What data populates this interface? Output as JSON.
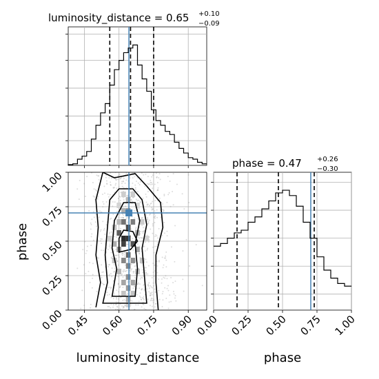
{
  "chart_data": [
    {
      "type": "histogram",
      "panel": "luminosity_distance marginal",
      "title": {
        "label": "luminosity_distance = 0.65",
        "plus": "+0.10",
        "minus": "−0.09"
      },
      "xlim": [
        0.38,
        0.98
      ],
      "bins": [
        0.38,
        0.4,
        0.42,
        0.44,
        0.46,
        0.48,
        0.5,
        0.52,
        0.54,
        0.56,
        0.58,
        0.6,
        0.62,
        0.64,
        0.66,
        0.68,
        0.7,
        0.72,
        0.74,
        0.76,
        0.78,
        0.8,
        0.82,
        0.84,
        0.86,
        0.88,
        0.9,
        0.92,
        0.94,
        0.96,
        0.98
      ],
      "counts": [
        1,
        2,
        8,
        12,
        18,
        34,
        52,
        68,
        80,
        104,
        124,
        136,
        146,
        152,
        156,
        130,
        112,
        96,
        72,
        58,
        52,
        44,
        40,
        30,
        22,
        16,
        10,
        8,
        4,
        2
      ],
      "quantiles": [
        0.56,
        0.65,
        0.75
      ],
      "truth": 0.643
    },
    {
      "type": "histogram",
      "panel": "phase marginal",
      "title": {
        "label": "phase = 0.47",
        "plus": "+0.26",
        "minus": "−0.30"
      },
      "xlim": [
        0,
        1
      ],
      "xticks": [
        "0.00",
        "0.25",
        "0.50",
        "0.75",
        "1.00"
      ],
      "bins": [
        0.0,
        0.05,
        0.1,
        0.15,
        0.2,
        0.25,
        0.3,
        0.35,
        0.4,
        0.45,
        0.5,
        0.55,
        0.6,
        0.65,
        0.7,
        0.75,
        0.8,
        0.85,
        0.9,
        0.95,
        1.0
      ],
      "counts": [
        48,
        50,
        54,
        58,
        60,
        66,
        70,
        76,
        82,
        88,
        90,
        86,
        78,
        66,
        54,
        40,
        30,
        24,
        20,
        18
      ],
      "quantiles": [
        0.17,
        0.47,
        0.73
      ],
      "truth": 0.705
    },
    {
      "type": "heatmap",
      "panel": "2D luminosity_distance vs phase",
      "xlabel": "luminosity_distance",
      "ylabel": "phase",
      "xlim": [
        0.38,
        0.98
      ],
      "ylim": [
        0,
        1
      ],
      "xticks": [
        "0.45",
        "0.60",
        "0.75",
        "0.90"
      ],
      "yticks": [
        "0.00",
        "0.25",
        "0.50",
        "0.75",
        "1.00"
      ],
      "truth": {
        "x": 0.643,
        "y": 0.705
      },
      "contours": [
        [
          [
            0.5,
            0.02
          ],
          [
            0.52,
            0.2
          ],
          [
            0.5,
            0.4
          ],
          [
            0.51,
            0.6
          ],
          [
            0.5,
            0.8
          ],
          [
            0.53,
            1.0
          ],
          [
            0.58,
            0.96
          ],
          [
            0.67,
            0.99
          ],
          [
            0.72,
            0.9
          ],
          [
            0.78,
            0.78
          ],
          [
            0.79,
            0.6
          ],
          [
            0.76,
            0.4
          ],
          [
            0.76,
            0.2
          ],
          [
            0.77,
            0.0
          ]
        ],
        [
          [
            0.53,
            0.05
          ],
          [
            0.55,
            0.2
          ],
          [
            0.54,
            0.4
          ],
          [
            0.55,
            0.6
          ],
          [
            0.56,
            0.8
          ],
          [
            0.6,
            0.88
          ],
          [
            0.66,
            0.88
          ],
          [
            0.7,
            0.8
          ],
          [
            0.72,
            0.62
          ],
          [
            0.7,
            0.45
          ],
          [
            0.71,
            0.25
          ],
          [
            0.72,
            0.05
          ]
        ],
        [
          [
            0.57,
            0.1
          ],
          [
            0.59,
            0.3
          ],
          [
            0.57,
            0.45
          ],
          [
            0.58,
            0.65
          ],
          [
            0.62,
            0.78
          ],
          [
            0.67,
            0.78
          ],
          [
            0.69,
            0.65
          ],
          [
            0.67,
            0.48
          ],
          [
            0.68,
            0.3
          ],
          [
            0.67,
            0.1
          ]
        ],
        [
          [
            0.6,
            0.42
          ],
          [
            0.6,
            0.52
          ],
          [
            0.62,
            0.58
          ],
          [
            0.66,
            0.57
          ],
          [
            0.68,
            0.5
          ],
          [
            0.65,
            0.44
          ]
        ]
      ],
      "density": [
        [
          0.62,
          0.52,
          0.95
        ],
        [
          0.64,
          0.52,
          0.9
        ],
        [
          0.62,
          0.48,
          0.85
        ],
        [
          0.64,
          0.6,
          0.8
        ],
        [
          0.66,
          0.48,
          0.75
        ],
        [
          0.6,
          0.56,
          0.7
        ],
        [
          0.64,
          0.4,
          0.65
        ],
        [
          0.62,
          0.64,
          0.6
        ],
        [
          0.66,
          0.64,
          0.55
        ],
        [
          0.64,
          0.32,
          0.5
        ],
        [
          0.62,
          0.36,
          0.5
        ],
        [
          0.66,
          0.36,
          0.45
        ],
        [
          0.64,
          0.24,
          0.45
        ],
        [
          0.64,
          0.16,
          0.4
        ],
        [
          0.62,
          0.2,
          0.35
        ],
        [
          0.66,
          0.2,
          0.35
        ],
        [
          0.6,
          0.44,
          0.4
        ],
        [
          0.68,
          0.44,
          0.35
        ],
        [
          0.64,
          0.72,
          0.4
        ],
        [
          0.62,
          0.72,
          0.3
        ],
        [
          0.58,
          0.48,
          0.3
        ],
        [
          0.68,
          0.56,
          0.3
        ],
        [
          0.64,
          0.08,
          0.3
        ],
        [
          0.64,
          0.8,
          0.25
        ],
        [
          0.6,
          0.64,
          0.25
        ],
        [
          0.6,
          0.28,
          0.25
        ],
        [
          0.68,
          0.28,
          0.22
        ],
        [
          0.58,
          0.36,
          0.2
        ],
        [
          0.7,
          0.36,
          0.2
        ],
        [
          0.62,
          0.12,
          0.2
        ],
        [
          0.66,
          0.12,
          0.2
        ],
        [
          0.58,
          0.6,
          0.18
        ],
        [
          0.7,
          0.64,
          0.15
        ],
        [
          0.62,
          0.84,
          0.15
        ],
        [
          0.66,
          0.84,
          0.15
        ],
        [
          0.56,
          0.52,
          0.12
        ],
        [
          0.72,
          0.52,
          0.12
        ],
        [
          0.64,
          0.04,
          0.12
        ],
        [
          0.6,
          0.76,
          0.12
        ],
        [
          0.68,
          0.76,
          0.1
        ]
      ]
    }
  ]
}
